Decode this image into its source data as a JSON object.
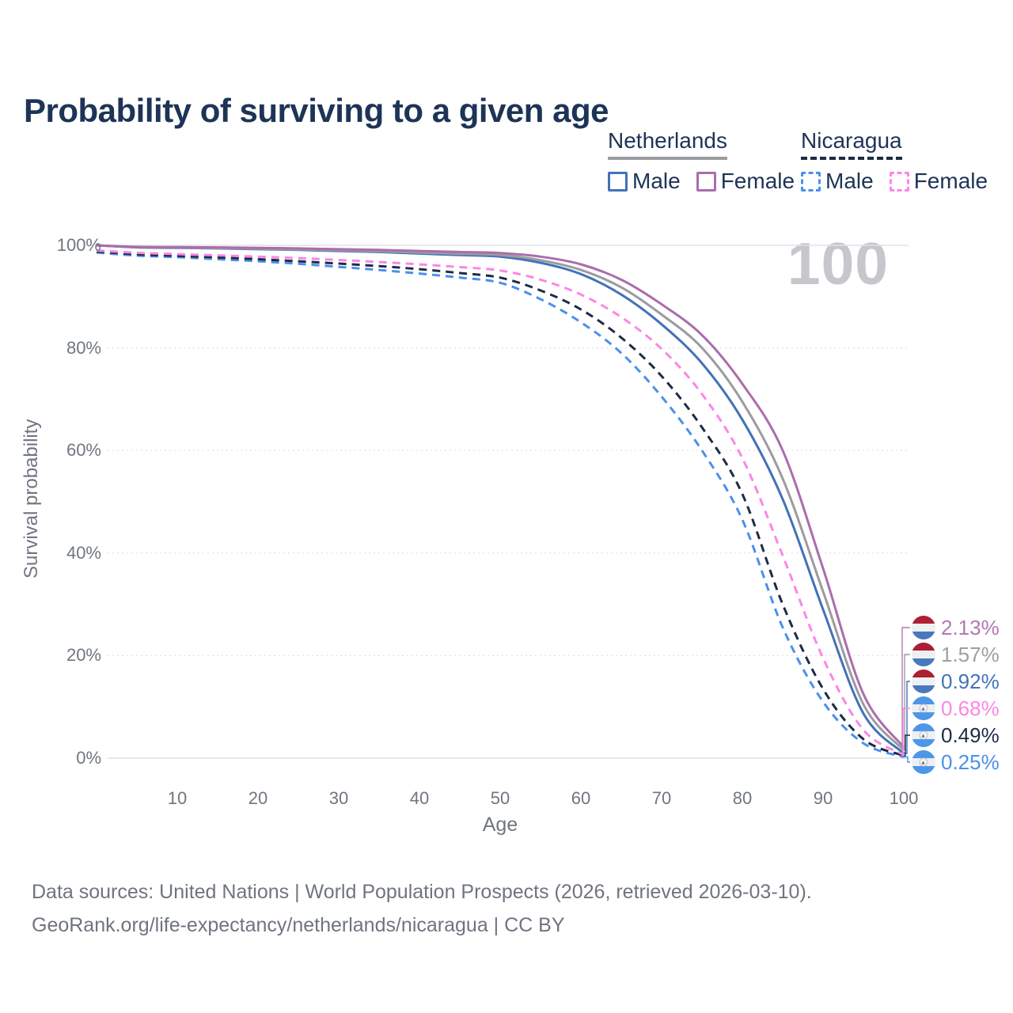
{
  "title": "Probability of surviving to a given age",
  "watermark": "100",
  "legend": {
    "groups": [
      {
        "label": "Netherlands",
        "line_style": "solid",
        "line_color": "#9b9ba0",
        "items": [
          {
            "label": "Male",
            "color": "#4272b8",
            "dashed": false
          },
          {
            "label": "Female",
            "color": "#aa6dac",
            "dashed": false
          }
        ]
      },
      {
        "label": "Nicaragua",
        "line_style": "dashed",
        "line_color": "#1d2c44",
        "items": [
          {
            "label": "Male",
            "color": "#4a90ee",
            "dashed": true
          },
          {
            "label": "Female",
            "color": "#fb86e6",
            "dashed": true
          }
        ]
      }
    ]
  },
  "axes": {
    "x": {
      "label": "Age",
      "ticks": [
        "10",
        "20",
        "30",
        "40",
        "50",
        "60",
        "70",
        "80",
        "90",
        "100"
      ],
      "tick_values": [
        10,
        20,
        30,
        40,
        50,
        60,
        70,
        80,
        90,
        100
      ],
      "min": 0,
      "max": 100
    },
    "y": {
      "label": "Survival probability",
      "ticks": [
        "100%",
        "80%",
        "60%",
        "40%",
        "20%",
        "0%"
      ],
      "tick_values": [
        100,
        80,
        60,
        40,
        20,
        0
      ],
      "min": 0,
      "max": 100
    }
  },
  "chart_data": {
    "type": "line",
    "title": "Probability of surviving to a given age",
    "xlabel": "Age",
    "ylabel": "Survival probability",
    "xlim": [
      0,
      100
    ],
    "ylim": [
      0,
      100
    ],
    "grid": true,
    "legend_position": "top-right",
    "x": [
      0,
      5,
      10,
      15,
      20,
      25,
      30,
      35,
      40,
      45,
      50,
      55,
      60,
      65,
      70,
      75,
      80,
      85,
      90,
      95,
      100
    ],
    "series": [
      {
        "name": "Netherlands Male",
        "color": "#4272b8",
        "dashed": false,
        "values": [
          100,
          99.6,
          99.5,
          99.4,
          99.25,
          99.1,
          98.9,
          98.7,
          98.4,
          98.1,
          97.8,
          96.6,
          94.4,
          90.4,
          84.6,
          77.0,
          66.0,
          50.5,
          29.0,
          8.7,
          0.92
        ]
      },
      {
        "name": "Netherlands Both sexes",
        "color": "#9b9ba0",
        "dashed": false,
        "values": [
          100,
          99.65,
          99.55,
          99.45,
          99.35,
          99.2,
          99.05,
          98.85,
          98.6,
          98.35,
          98.1,
          97.1,
          95.2,
          91.8,
          86.5,
          80.0,
          69.5,
          54.5,
          32.5,
          10.5,
          1.57
        ]
      },
      {
        "name": "Netherlands Female",
        "color": "#aa6dac",
        "dashed": false,
        "values": [
          100,
          99.7,
          99.65,
          99.6,
          99.5,
          99.4,
          99.25,
          99.1,
          98.9,
          98.7,
          98.5,
          97.8,
          96.3,
          93.3,
          88.5,
          82.5,
          73.0,
          60.0,
          37.0,
          12.5,
          2.13
        ]
      },
      {
        "name": "Nicaragua Male",
        "color": "#4a90ee",
        "dashed": true,
        "values": [
          98.6,
          98.0,
          97.7,
          97.3,
          96.9,
          96.4,
          95.8,
          95.2,
          94.5,
          93.7,
          92.7,
          89.5,
          85.0,
          79.0,
          70.5,
          60.0,
          46.5,
          25.5,
          11.0,
          2.9,
          0.25
        ]
      },
      {
        "name": "Nicaragua Both sexes",
        "color": "#1d2c44",
        "dashed": true,
        "values": [
          98.8,
          98.25,
          97.95,
          97.65,
          97.3,
          96.9,
          96.45,
          95.95,
          95.35,
          94.6,
          93.7,
          91.2,
          87.5,
          82.0,
          74.5,
          64.5,
          51.5,
          30.0,
          13.5,
          3.7,
          0.49
        ]
      },
      {
        "name": "Nicaragua Female",
        "color": "#fb86e6",
        "dashed": true,
        "values": [
          99.0,
          98.55,
          98.3,
          98.05,
          97.8,
          97.5,
          97.15,
          96.75,
          96.3,
          95.75,
          95.1,
          93.3,
          90.4,
          86.0,
          79.8,
          71.0,
          58.5,
          39.5,
          19.5,
          5.5,
          0.68
        ]
      }
    ]
  },
  "end_labels": [
    {
      "value": "2.13%",
      "color": "#b279b2",
      "flag": "netherlands",
      "series_index": 2,
      "series": "Netherlands Female"
    },
    {
      "value": "1.57%",
      "color": "#9e9ea3",
      "flag": "netherlands",
      "series_index": 1,
      "series": "Netherlands Both sexes"
    },
    {
      "value": "0.92%",
      "color": "#4272b8",
      "flag": "netherlands",
      "series_index": 0,
      "series": "Netherlands Male"
    },
    {
      "value": "0.68%",
      "color": "#fb86e6",
      "flag": "nicaragua",
      "series_index": 5,
      "series": "Nicaragua Female"
    },
    {
      "value": "0.49%",
      "color": "#1d2c44",
      "flag": "nicaragua",
      "series_index": 4,
      "series": "Nicaragua Both sexes"
    },
    {
      "value": "0.25%",
      "color": "#4a90ee",
      "flag": "nicaragua",
      "series_index": 3,
      "series": "Nicaragua Male"
    }
  ],
  "footer": {
    "line1": "Data sources: United Nations | World Population Prospects (2026, retrieved 2026-03-10).",
    "line2": "GeoRank.org/life-expectancy/netherlands/nicaragua | CC BY"
  },
  "colors": {
    "title_text": "#1d3456",
    "axis_text": "#6f7680",
    "gridline": "#e1e2e7",
    "watermark": "#c6c6cc"
  }
}
